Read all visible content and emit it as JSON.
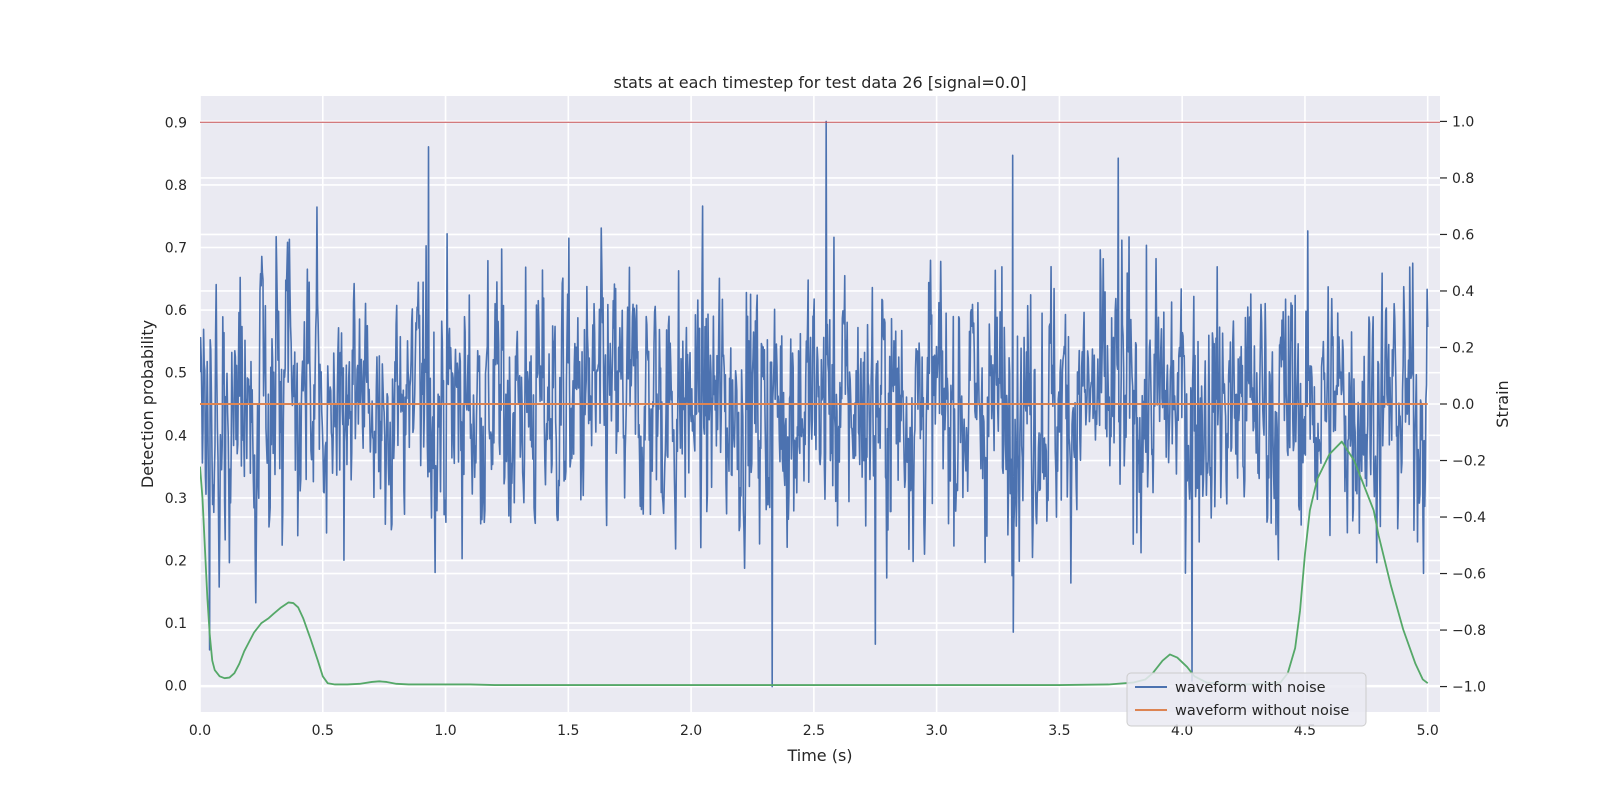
{
  "chart_data": {
    "type": "line",
    "title": "stats at each timestep for test data 26 [signal=0.0]",
    "xlabel": "Time (s)",
    "ylabel": "Detection probability",
    "ylabel_right": "Strain",
    "xlim": [
      0.0,
      5.05
    ],
    "ylim": [
      -0.042,
      0.942
    ],
    "ylim_right": [
      -1.09,
      1.09
    ],
    "x_ticks": [
      "0.0",
      "0.5",
      "1.0",
      "1.5",
      "2.0",
      "2.5",
      "3.0",
      "3.5",
      "4.0",
      "4.5",
      "5.0"
    ],
    "y_ticks": [
      "0.0",
      "0.1",
      "0.2",
      "0.3",
      "0.4",
      "0.5",
      "0.6",
      "0.7",
      "0.8",
      "0.9"
    ],
    "y_ticks_right": [
      "−1.0",
      "−0.8",
      "−0.6",
      "−0.4",
      "−0.2",
      "0.0",
      "0.2",
      "0.4",
      "0.6",
      "0.8",
      "1.0"
    ],
    "grid": true,
    "legend_position": "lower-right",
    "threshold": {
      "y": 0.9,
      "color": "#c44e52"
    },
    "series": [
      {
        "name": "waveform with noise",
        "axis": "right",
        "color": "#4c72b0",
        "points": 2048,
        "x_range": [
          0.0,
          5.0
        ],
        "y_range": [
          -1.0,
          1.0
        ],
        "typical_amplitude": 0.3,
        "peaks": [
          {
            "x": 2.55,
            "y": 1.0
          },
          {
            "x": 0.93,
            "y": 0.91
          },
          {
            "x": 3.31,
            "y": 0.88
          },
          {
            "x": 3.74,
            "y": 0.87
          },
          {
            "x": 2.33,
            "y": -1.0
          },
          {
            "x": 4.04,
            "y": -0.98
          },
          {
            "x": 0.04,
            "y": -0.87
          },
          {
            "x": 2.75,
            "y": -0.85
          }
        ]
      },
      {
        "name": "waveform without noise",
        "axis": "right",
        "color": "#dd8452",
        "x": [
          0.0,
          5.0
        ],
        "y": [
          0.0,
          0.0
        ]
      },
      {
        "axis": "left",
        "color": "#55a868",
        "x": [
          0.0,
          0.01,
          0.02,
          0.03,
          0.04,
          0.05,
          0.06,
          0.08,
          0.1,
          0.12,
          0.14,
          0.16,
          0.18,
          0.2,
          0.22,
          0.25,
          0.28,
          0.3,
          0.33,
          0.36,
          0.38,
          0.4,
          0.42,
          0.45,
          0.48,
          0.5,
          0.52,
          0.55,
          0.6,
          0.65,
          0.7,
          0.73,
          0.76,
          0.8,
          0.85,
          0.9,
          1.0,
          1.1,
          1.2,
          1.5,
          2.0,
          2.5,
          3.0,
          3.5,
          3.7,
          3.8,
          3.85,
          3.88,
          3.92,
          3.95,
          3.98,
          4.02,
          4.05,
          4.1,
          4.2,
          4.3,
          4.4,
          4.43,
          4.46,
          4.48,
          4.5,
          4.52,
          4.55,
          4.6,
          4.65,
          4.7,
          4.73,
          4.75,
          4.78,
          4.8,
          4.85,
          4.9,
          4.95,
          4.98,
          5.0
        ],
        "y": [
          0.35,
          0.3,
          0.22,
          0.14,
          0.08,
          0.04,
          0.025,
          0.015,
          0.012,
          0.013,
          0.02,
          0.035,
          0.055,
          0.07,
          0.085,
          0.1,
          0.108,
          0.115,
          0.125,
          0.133,
          0.132,
          0.125,
          0.108,
          0.075,
          0.04,
          0.015,
          0.004,
          0.002,
          0.002,
          0.003,
          0.006,
          0.007,
          0.006,
          0.003,
          0.002,
          0.002,
          0.002,
          0.002,
          0.001,
          0.001,
          0.001,
          0.001,
          0.001,
          0.001,
          0.002,
          0.005,
          0.01,
          0.02,
          0.04,
          0.05,
          0.045,
          0.03,
          0.015,
          0.005,
          0.002,
          0.002,
          0.005,
          0.02,
          0.06,
          0.12,
          0.21,
          0.28,
          0.33,
          0.37,
          0.39,
          0.36,
          0.33,
          0.31,
          0.28,
          0.24,
          0.16,
          0.09,
          0.035,
          0.01,
          0.004
        ]
      }
    ]
  }
}
